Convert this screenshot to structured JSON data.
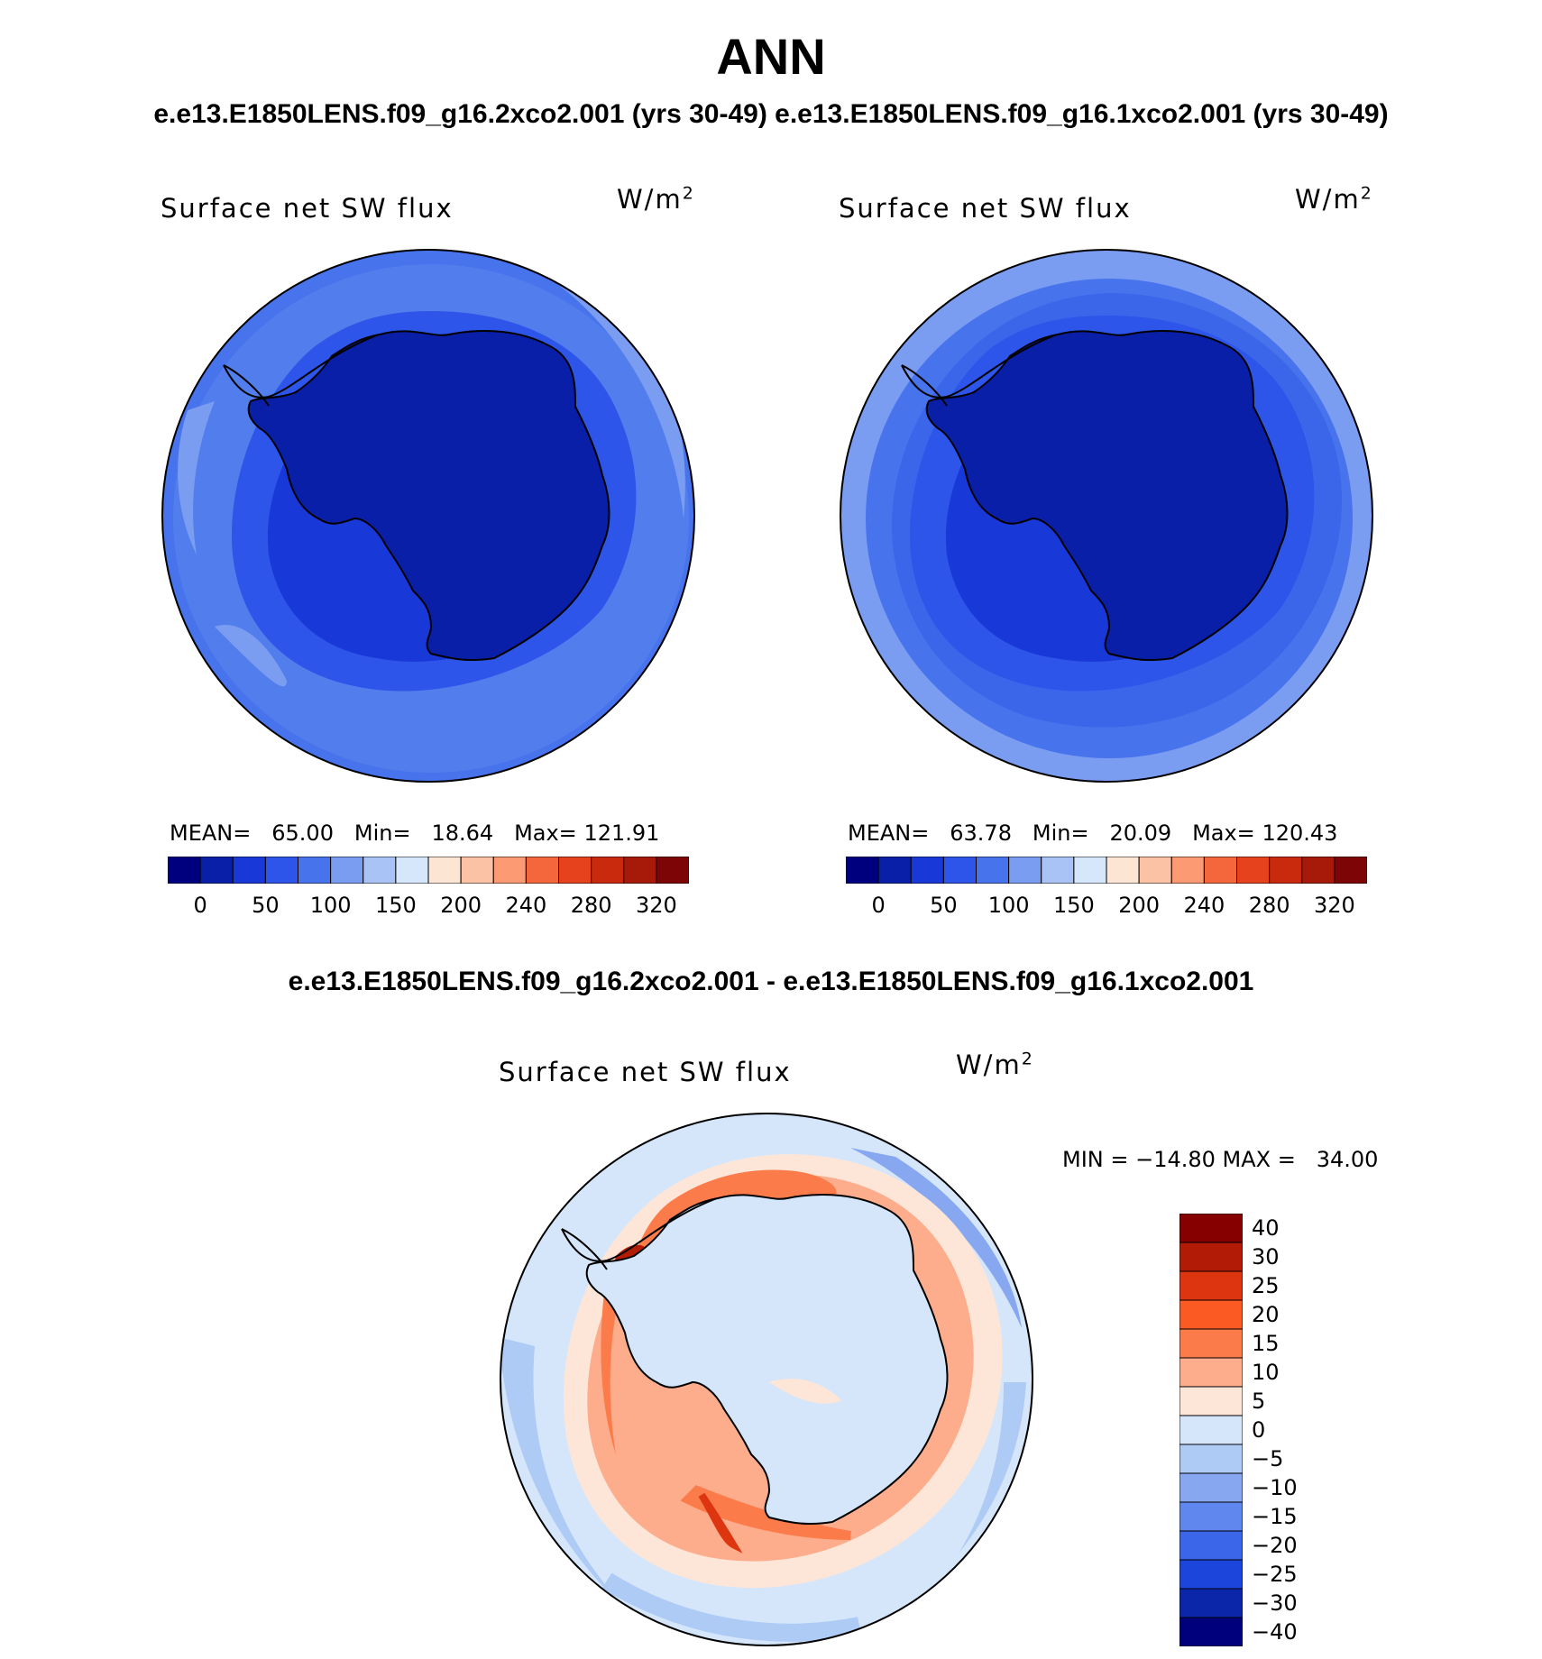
{
  "title": "ANN",
  "subtitle": "e.e13.E1850LENS.f09_g16.2xco2.001 (yrs 30-49)  e.e13.E1850LENS.f09_g16.1xco2.001 (yrs 30-49)",
  "diff_title": "e.e13.E1850LENS.f09_g16.2xco2.001 - e.e13.E1850LENS.f09_g16.1xco2.001",
  "panels": [
    {
      "variable": "Surface net SW flux",
      "units_base": "W/m",
      "units_exp": "2",
      "mean_label": "MEAN=",
      "mean": "65.00",
      "min_label": "Min=",
      "min": "18.64",
      "max_label": "Max=",
      "max": "121.91"
    },
    {
      "variable": "Surface net SW flux",
      "units_base": "W/m",
      "units_exp": "2",
      "mean_label": "MEAN=",
      "mean": "63.78",
      "min_label": "Min=",
      "min": "20.09",
      "max_label": "Max=",
      "max": "120.43"
    }
  ],
  "abs_colorbar": {
    "colors": [
      "#00007f",
      "#0a1fa8",
      "#1838d8",
      "#2d55ea",
      "#4773ec",
      "#7a9cf1",
      "#a9c3f7",
      "#d6e7fb",
      "#fde5d3",
      "#fcc2a6",
      "#fb9a73",
      "#f4673d",
      "#e6421e",
      "#c92a0e",
      "#a71a0a",
      "#7d0505"
    ],
    "labels": [
      "0",
      "50",
      "100",
      "150",
      "200",
      "240",
      "280",
      "320"
    ]
  },
  "diff_panel": {
    "variable": "Surface net SW flux",
    "units_base": "W/m",
    "units_exp": "2",
    "minmax": "MIN = −14.80 MAX =   34.00"
  },
  "diff_colorbar": {
    "colors_top_to_bottom": [
      "#870000",
      "#b21b06",
      "#de3511",
      "#fb5a23",
      "#fb7c4a",
      "#fdac8c",
      "#fde6d7",
      "#d5e6fa",
      "#aecbf6",
      "#87a8f1",
      "#5f87ee",
      "#3c66ea",
      "#1c45db",
      "#0b26a9",
      "#00007d"
    ],
    "labels": [
      "40",
      "30",
      "25",
      "20",
      "15",
      "10",
      "5",
      "0",
      "−5",
      "−10",
      "−15",
      "−20",
      "−25",
      "−30",
      "−40"
    ]
  },
  "colors": {
    "land_outline": "#000000",
    "background": "#ffffff"
  }
}
